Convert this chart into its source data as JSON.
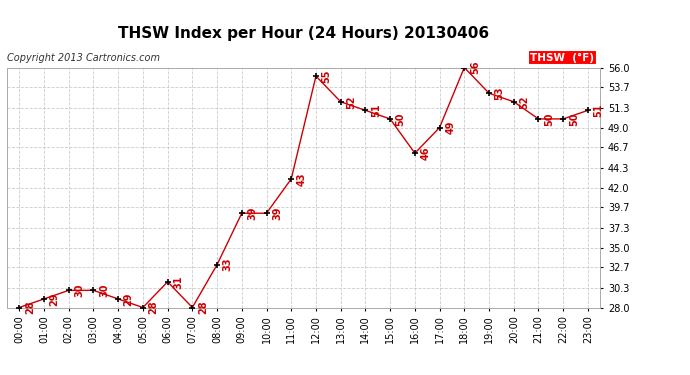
{
  "title": "THSW Index per Hour (24 Hours) 20130406",
  "copyright": "Copyright 2013 Cartronics.com",
  "legend_label": "THSW  (°F)",
  "hours": [
    0,
    1,
    2,
    3,
    4,
    5,
    6,
    7,
    8,
    9,
    10,
    11,
    12,
    13,
    14,
    15,
    16,
    17,
    18,
    19,
    20,
    21,
    22,
    23
  ],
  "values": [
    28,
    29,
    30,
    30,
    29,
    28,
    31,
    28,
    33,
    39,
    39,
    43,
    55,
    52,
    51,
    50,
    46,
    49,
    56,
    53,
    52,
    50,
    50,
    51
  ],
  "ylim": [
    28.0,
    56.0
  ],
  "yticks": [
    28.0,
    30.3,
    32.7,
    35.0,
    37.3,
    39.7,
    42.0,
    44.3,
    46.7,
    49.0,
    51.3,
    53.7,
    56.0
  ],
  "xtick_labels": [
    "00:00",
    "01:00",
    "02:00",
    "03:00",
    "04:00",
    "05:00",
    "06:00",
    "07:00",
    "08:00",
    "09:00",
    "10:00",
    "11:00",
    "12:00",
    "13:00",
    "14:00",
    "15:00",
    "16:00",
    "17:00",
    "18:00",
    "19:00",
    "20:00",
    "21:00",
    "22:00",
    "23:00"
  ],
  "line_color": "#cc0000",
  "marker_color": "#000000",
  "label_color": "#cc0000",
  "bg_color": "#ffffff",
  "grid_color": "#cccccc",
  "title_fontsize": 11,
  "copyright_fontsize": 7,
  "label_fontsize": 7,
  "tick_fontsize": 7,
  "ytick_fontsize": 7
}
